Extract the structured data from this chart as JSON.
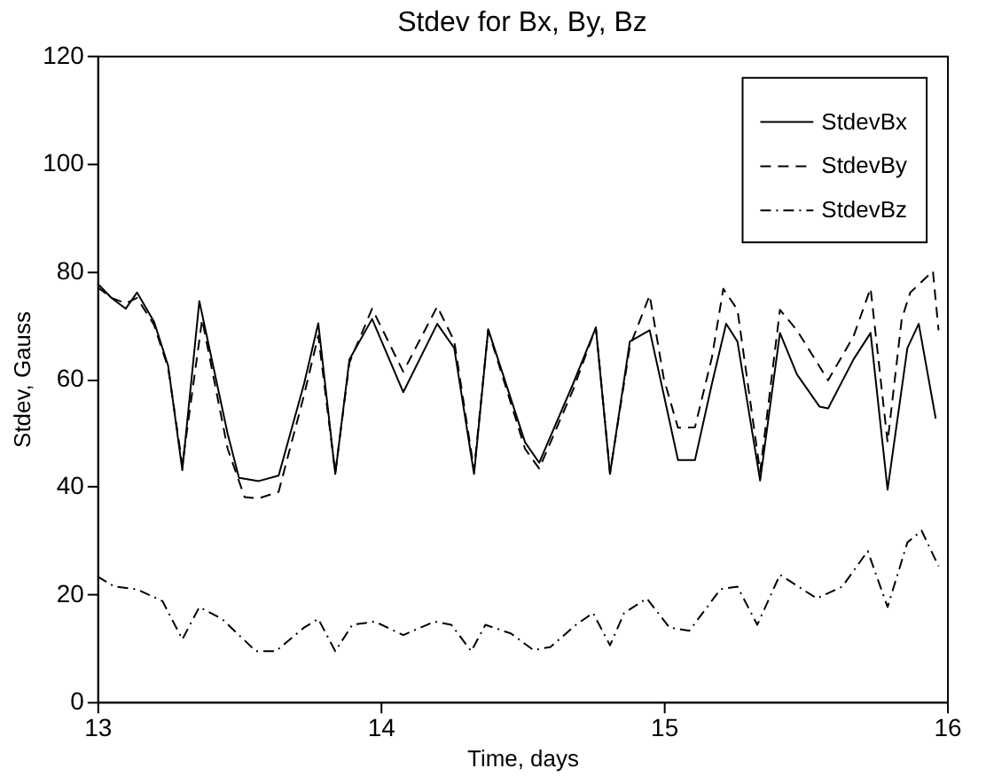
{
  "chart_data": {
    "type": "line",
    "title": "Stdev for Bx, By, Bz",
    "xlabel": "Time, days",
    "ylabel": "Stdev, Gauss",
    "xlim": [
      13,
      16
    ],
    "xticks": [
      13,
      14,
      15,
      16
    ],
    "ylim": [
      0,
      120
    ],
    "yticks": [
      0,
      20,
      40,
      60,
      80,
      100,
      120
    ],
    "grid": false,
    "legend": "top right",
    "marker": "none",
    "series": [
      {
        "name": "StdevBx",
        "color": "#000000",
        "line_style": "solid",
        "x": [
          13.0,
          13.05,
          13.1,
          13.14,
          13.2,
          13.25,
          13.3,
          13.36,
          13.46,
          13.5,
          13.57,
          13.64,
          13.73,
          13.78,
          13.84,
          13.89,
          13.97,
          14.08,
          14.2,
          14.26,
          14.33,
          14.38,
          14.51,
          14.56,
          14.68,
          14.76,
          14.81,
          14.88,
          14.95,
          15.0,
          15.05,
          15.11,
          15.17,
          15.22,
          15.26,
          15.34,
          15.41,
          15.47,
          15.55,
          15.58,
          15.67,
          15.73,
          15.79,
          15.86,
          15.9,
          15.96
        ],
        "values": [
          77.7,
          75,
          73,
          76,
          70.6,
          62.4,
          43,
          74.4,
          49.8,
          41.6,
          41,
          42,
          59.1,
          70.3,
          42.3,
          63.6,
          71.1,
          57.5,
          70.2,
          65.7,
          42.3,
          69.2,
          48.2,
          44.4,
          59.1,
          69.5,
          42.3,
          66.9,
          69,
          57,
          44.9,
          44.9,
          59.1,
          70.2,
          66.9,
          41.1,
          68.5,
          60.8,
          54.8,
          54.5,
          63.6,
          68.5,
          39.4,
          65.7,
          70.2,
          52.6
        ]
      },
      {
        "name": "StdevBy",
        "color": "#000000",
        "line_style": "dashed",
        "x": [
          13.0,
          13.05,
          13.1,
          13.14,
          13.2,
          13.25,
          13.3,
          13.37,
          13.46,
          13.52,
          13.57,
          13.64,
          13.73,
          13.78,
          13.84,
          13.89,
          13.97,
          14.08,
          14.2,
          14.26,
          14.33,
          14.38,
          14.51,
          14.56,
          14.68,
          14.76,
          14.81,
          14.88,
          14.95,
          15.0,
          15.05,
          15.11,
          15.17,
          15.21,
          15.26,
          15.34,
          15.41,
          15.47,
          15.58,
          15.67,
          15.73,
          15.79,
          15.84,
          15.87,
          15.95,
          15.97
        ],
        "values": [
          77,
          75,
          74,
          75,
          70,
          62,
          44,
          71,
          47,
          38,
          37.8,
          39,
          57,
          68,
          42.5,
          63,
          73,
          61.3,
          73.4,
          67,
          43,
          69,
          47,
          43.3,
          58,
          69.5,
          42.5,
          66,
          75.5,
          60,
          50.9,
          51,
          64,
          76.7,
          72.8,
          42.7,
          72.8,
          69,
          59.7,
          67.9,
          76.8,
          48.2,
          71.1,
          76,
          80,
          69
        ]
      },
      {
        "name": "StdevBz",
        "color": "#000000",
        "line_style": "dashdot",
        "x": [
          13.0,
          13.06,
          13.14,
          13.23,
          13.3,
          13.36,
          13.44,
          13.56,
          13.63,
          13.73,
          13.78,
          13.84,
          13.9,
          13.98,
          14.08,
          14.19,
          14.25,
          14.32,
          14.37,
          14.46,
          14.54,
          14.6,
          14.69,
          14.75,
          14.81,
          14.86,
          14.94,
          15.02,
          15.09,
          15.2,
          15.26,
          15.33,
          15.41,
          15.54,
          15.63,
          15.72,
          15.79,
          15.86,
          15.91,
          15.97
        ],
        "values": [
          23.3,
          21.4,
          20.9,
          18.7,
          11.6,
          17.6,
          15.4,
          9.4,
          9.4,
          13.8,
          15.4,
          9.4,
          14.3,
          14.9,
          12.4,
          14.9,
          14.3,
          9.4,
          14.3,
          12.7,
          9.6,
          10.2,
          14.3,
          16.5,
          10.5,
          16.5,
          19.2,
          13.8,
          13.2,
          20.9,
          21.4,
          14.3,
          23.6,
          19.2,
          21.4,
          28.0,
          17.6,
          29.6,
          31.8,
          25.2
        ]
      }
    ]
  }
}
